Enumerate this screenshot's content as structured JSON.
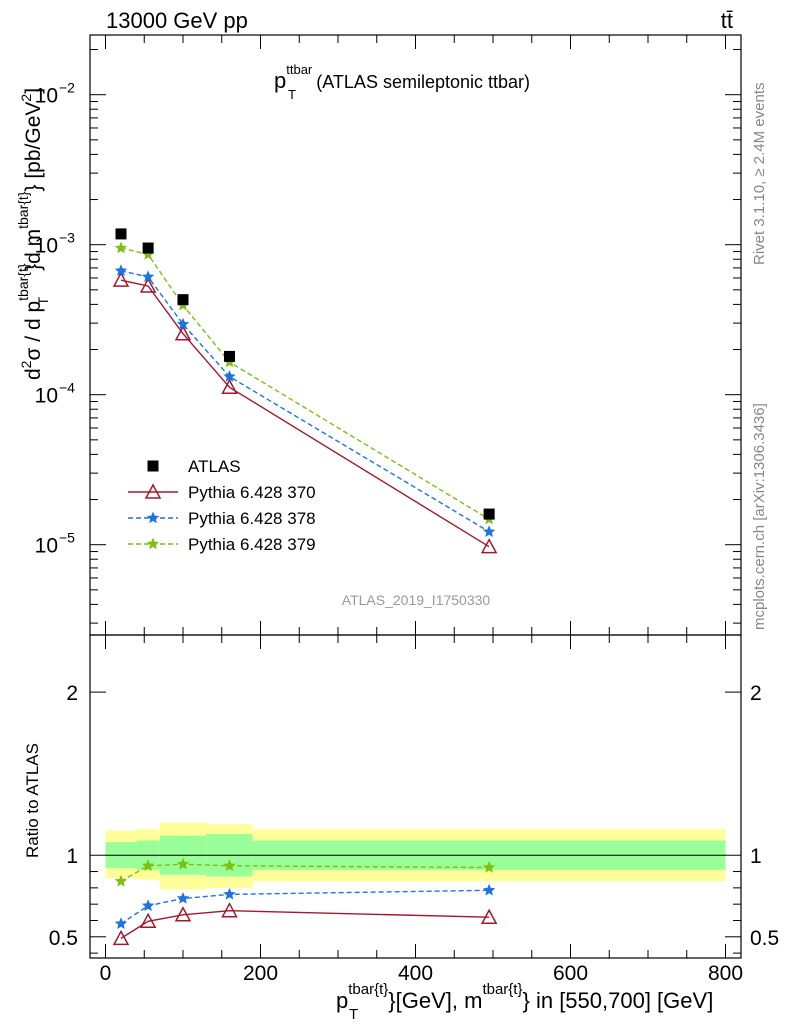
{
  "header": {
    "energy": "13000 GeV pp",
    "process": "tt̄"
  },
  "side_labels": {
    "rivet": "Rivet 3.1.10, ≥ 2.4M events",
    "mcplots": "mcplots.cern.ch [arXiv:1306.3436]"
  },
  "chart_data": [
    {
      "type": "scatter",
      "title": "(ATLAS semileptonic ttbar)",
      "title_symbol": "p",
      "title_sub": "T",
      "title_sup": "ttbar",
      "watermark": "ATLAS_2019_I1750330",
      "yscale": "log",
      "ylim": [
        2.5e-06,
        0.025
      ],
      "xlim": [
        -20,
        820
      ],
      "yticks": [
        {
          "v": 1e-05,
          "b": "10",
          "e": "−5"
        },
        {
          "v": 0.0001,
          "b": "10",
          "e": "−4"
        },
        {
          "v": 0.001,
          "b": "10",
          "e": "−3"
        },
        {
          "v": 0.01,
          "b": "10",
          "e": "−2"
        }
      ],
      "ylabel": "d²σ / d p_T^{tbar{t}}d m^{tbar{t}} [pb/GeV²]",
      "legend_position": "bottom-left",
      "series": [
        {
          "name": "ATLAS",
          "marker": "square",
          "color": "#000000",
          "line": "none",
          "x": [
            20,
            55,
            100,
            160,
            495
          ],
          "y": [
            0.00118,
            0.00095,
            0.00043,
            0.00018,
            1.6e-05
          ]
        },
        {
          "name": "Pythia 6.428 370",
          "marker": "triangle-open",
          "color": "#a5172f",
          "line": "solid",
          "x": [
            20,
            55,
            100,
            160,
            495
          ],
          "y": [
            0.00058,
            0.00053,
            0.000255,
            0.000112,
            9.7e-06
          ]
        },
        {
          "name": "Pythia 6.428 378",
          "marker": "star",
          "color": "#1a74e6",
          "line": "dashed",
          "x": [
            20,
            55,
            100,
            160,
            495
          ],
          "y": [
            0.00067,
            0.00061,
            0.000295,
            0.000132,
            1.22e-05
          ]
        },
        {
          "name": "Pythia 6.428 379",
          "marker": "star",
          "color": "#7ec010",
          "line": "dashed",
          "x": [
            20,
            55,
            100,
            160,
            495
          ],
          "y": [
            0.00095,
            0.00086,
            0.000395,
            0.000165,
            1.48e-05
          ]
        }
      ]
    },
    {
      "type": "line",
      "ylabel": "Ratio to ATLAS",
      "ylim": [
        0.37,
        2.35
      ],
      "yticks": [
        0.5,
        1,
        2
      ],
      "ytick_labels": [
        "0.5",
        "1",
        "2"
      ],
      "xlim": [
        -20,
        820
      ],
      "xticks": [
        0,
        200,
        400,
        600,
        800
      ],
      "xtick_labels": [
        "0",
        "200",
        "400",
        "600",
        "800"
      ],
      "xlabel": "p_T^{tbar{t}}[GeV], m^{tbar{t}} in [550,700] [GeV]",
      "uncertainty_bands": {
        "edges": [
          0,
          40,
          70,
          130,
          190,
          800
        ],
        "inner": [
          [
            0.92,
            1.08
          ],
          [
            0.91,
            1.09
          ],
          [
            0.88,
            1.12
          ],
          [
            0.87,
            1.13
          ],
          [
            0.91,
            1.09
          ]
        ],
        "outer": [
          [
            0.86,
            1.15
          ],
          [
            0.85,
            1.16
          ],
          [
            0.79,
            1.2
          ],
          [
            0.8,
            1.19
          ],
          [
            0.84,
            1.16
          ]
        ],
        "inner_color": "#99ff99",
        "outer_color": "#ffff99"
      },
      "series": [
        {
          "name": "Pythia 6.428 370",
          "marker": "triangle-open",
          "color": "#a5172f",
          "line": "solid",
          "x": [
            20,
            55,
            100,
            160,
            495
          ],
          "y": [
            0.49,
            0.595,
            0.635,
            0.66,
            0.62
          ]
        },
        {
          "name": "Pythia 6.428 378",
          "marker": "star",
          "color": "#1a74e6",
          "line": "dashed",
          "x": [
            20,
            55,
            100,
            160,
            495
          ],
          "y": [
            0.58,
            0.69,
            0.735,
            0.76,
            0.785
          ]
        },
        {
          "name": "Pythia 6.428 379",
          "marker": "star",
          "color": "#7ec010",
          "line": "dashed",
          "x": [
            20,
            55,
            100,
            160,
            495
          ],
          "y": [
            0.84,
            0.935,
            0.945,
            0.935,
            0.925
          ]
        }
      ]
    }
  ]
}
